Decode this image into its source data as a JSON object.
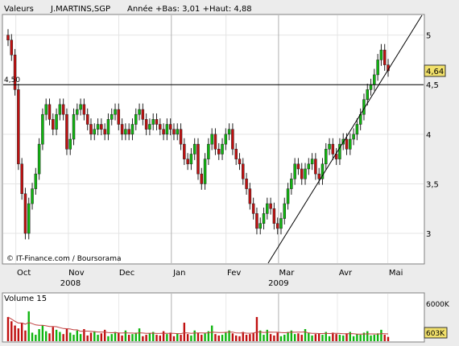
{
  "header": {
    "label": "Valeurs",
    "ticker": "J.MARTINS,SGP",
    "info": "Année +Bas: 3,01 +Haut: 4,88"
  },
  "credits": "© IT-Finance.com / Boursorama",
  "volume_panel": {
    "label": "Volume 15",
    "axis_top": "6000K",
    "current": "603K"
  },
  "colors": {
    "up": "#10b510",
    "down": "#c01010",
    "ma": "#c04040",
    "last_badge": "#f2e16b"
  },
  "chart_data": {
    "type": "candlestick",
    "x_months": [
      "Oct",
      "Nov",
      "Dec",
      "Jan",
      "Fev",
      "Mar",
      "Avr",
      "Mai"
    ],
    "x_years": [
      "2008",
      "2009"
    ],
    "y_ticks": [
      3,
      3.5,
      4,
      4.5,
      5
    ],
    "ylim": [
      2.7,
      5.2
    ],
    "hline": {
      "value": 4.5,
      "label": "4,50"
    },
    "last_value": "4,64",
    "trendline": {
      "from": [
        0.7,
        2.7
      ],
      "to": [
        1.99,
        5.2
      ]
    },
    "close_series": [
      4.95,
      4.8,
      4.45,
      3.7,
      3.4,
      3.0,
      3.3,
      3.45,
      3.6,
      3.9,
      4.2,
      4.3,
      4.15,
      4.05,
      4.2,
      4.3,
      4.2,
      3.85,
      3.95,
      4.2,
      4.25,
      4.3,
      4.2,
      4.1,
      4.0,
      4.05,
      4.1,
      4.05,
      4.0,
      4.15,
      4.2,
      4.25,
      4.1,
      4.0,
      4.05,
      4.0,
      4.1,
      4.2,
      4.25,
      4.15,
      4.05,
      4.1,
      4.15,
      4.1,
      4.05,
      4.0,
      4.1,
      4.05,
      4.0,
      4.05,
      3.9,
      3.75,
      3.7,
      3.8,
      3.9,
      3.6,
      3.5,
      3.75,
      3.9,
      4.0,
      3.85,
      3.8,
      3.9,
      4.0,
      4.05,
      3.85,
      3.75,
      3.7,
      3.55,
      3.45,
      3.3,
      3.2,
      3.05,
      3.1,
      3.2,
      3.3,
      3.25,
      3.1,
      3.05,
      3.15,
      3.3,
      3.45,
      3.55,
      3.7,
      3.65,
      3.55,
      3.65,
      3.7,
      3.75,
      3.6,
      3.55,
      3.7,
      3.85,
      3.9,
      3.8,
      3.75,
      3.9,
      3.95,
      3.85,
      3.95,
      4.0,
      4.1,
      4.2,
      4.35,
      4.45,
      4.5,
      4.6,
      4.75,
      4.85,
      4.7,
      4.64
    ],
    "volume_series": [
      3400,
      2800,
      2200,
      1800,
      2600,
      1500,
      4200,
      1200,
      900,
      1700,
      2200,
      1400,
      1100,
      2000,
      1600,
      1300,
      1000,
      1800,
      1200,
      900,
      1500,
      1000,
      1700,
      800,
      1200,
      1400,
      900,
      1100,
      1600,
      700,
      1000,
      1300,
      1200,
      800,
      1500,
      900,
      1000,
      1200,
      1800,
      700,
      900,
      1100,
      1300,
      900,
      800,
      1400,
      1000,
      1200,
      700,
      1100,
      900,
      2600,
      1000,
      800,
      1500,
      1200,
      900,
      1100,
      1400,
      2200,
      1000,
      800,
      900,
      1200,
      1500,
      1100,
      800,
      700,
      1300,
      900,
      1000,
      1200,
      3400,
      1500,
      900,
      1600,
      1000,
      800,
      1200,
      700,
      900,
      1300,
      1500,
      1000,
      1100,
      900,
      1700,
      1200,
      800,
      1000,
      1100,
      900,
      1300,
      700,
      1200,
      1000,
      900,
      800,
      1100,
      1300,
      700,
      1000,
      900,
      1200,
      1400,
      800,
      900,
      1100,
      1600,
      900,
      603
    ]
  }
}
